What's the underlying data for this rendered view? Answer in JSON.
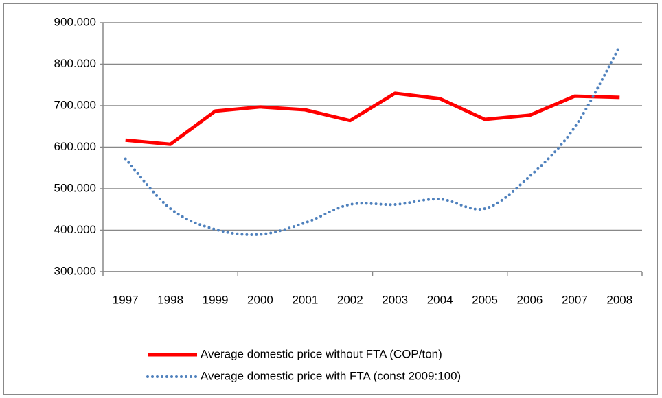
{
  "chart_data": {
    "type": "line",
    "categories": [
      "1997",
      "1998",
      "1999",
      "2000",
      "2001",
      "2002",
      "2003",
      "2004",
      "2005",
      "2006",
      "2007",
      "2008"
    ],
    "series": [
      {
        "name": "Average domestic price without FTA  (COP/ton)",
        "color": "#ff0000",
        "style": "solid",
        "values": [
          617000,
          607000,
          687000,
          697000,
          690000,
          664000,
          730000,
          717000,
          667000,
          677000,
          723000,
          720000
        ]
      },
      {
        "name": "Average domestic price with FTA (const 2009:100)",
        "color": "#4f81bd",
        "style": "dotted",
        "values": [
          572000,
          452000,
          402000,
          390000,
          418000,
          462000,
          462000,
          475000,
          452000,
          530000,
          648000,
          843000
        ]
      }
    ],
    "ylim": [
      300000,
      900000
    ],
    "yticks": [
      {
        "value": 300000,
        "label": "300.000"
      },
      {
        "value": 400000,
        "label": "400.000"
      },
      {
        "value": 500000,
        "label": "500.000"
      },
      {
        "value": 600000,
        "label": "600.000"
      },
      {
        "value": 700000,
        "label": "700.000"
      },
      {
        "value": 800000,
        "label": "800.000"
      },
      {
        "value": 900000,
        "label": "900.000"
      }
    ],
    "grid": true,
    "legend": "bottom"
  }
}
